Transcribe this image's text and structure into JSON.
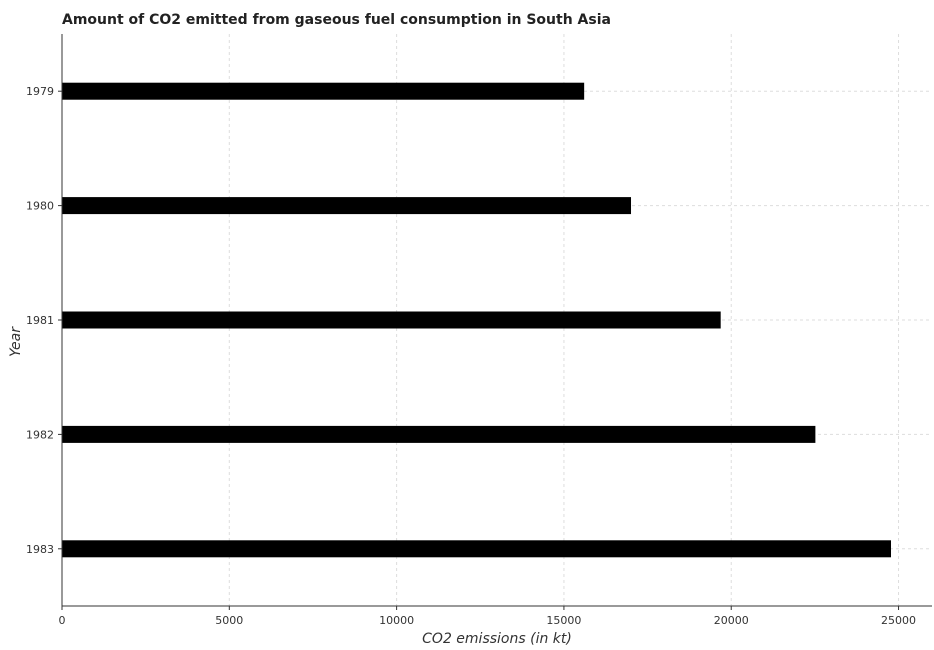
{
  "chart_data": {
    "type": "bar",
    "orientation": "horizontal",
    "title": "Amount of CO2 emitted from gaseous fuel consumption in South Asia",
    "xlabel": "CO2 emissions (in kt)",
    "ylabel": "Year",
    "categories": [
      "1979",
      "1980",
      "1981",
      "1982",
      "1983"
    ],
    "values": [
      15590,
      16990,
      19670,
      22500,
      24760
    ],
    "xlim": [
      0,
      26000
    ],
    "xticks": [
      0,
      5000,
      10000,
      15000,
      20000,
      25000
    ],
    "xtick_labels": [
      "0",
      "5000",
      "10000",
      "15000",
      "20000",
      "25000"
    ],
    "grid": true,
    "bar_color": "#000000",
    "bar_edge_color": "#000000"
  }
}
